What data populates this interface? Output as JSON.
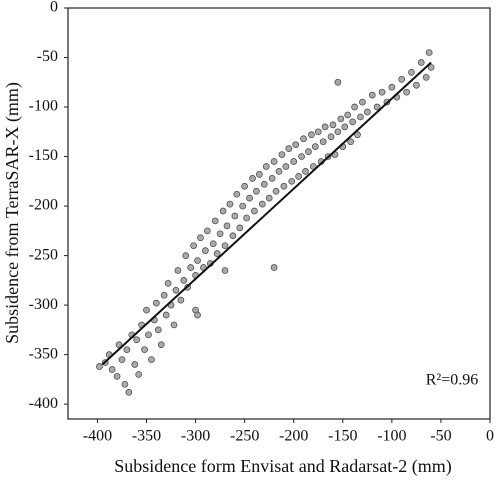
{
  "chart_data": {
    "type": "scatter",
    "x_label": "Subsidence form Envisat and Radarsat-2 (mm)",
    "y_label": "Subsidence from TerraSAR-X (mm)",
    "annotation": "R²=0.96",
    "color": "#a9a9a9",
    "xlim": [
      -430,
      0
    ],
    "ylim": [
      -415,
      0
    ],
    "xticks": [
      -400,
      -350,
      -300,
      -250,
      -200,
      -150,
      -100,
      -50,
      0
    ],
    "yticks": [
      0,
      -50,
      -100,
      -150,
      -200,
      -250,
      -300,
      -350,
      -400
    ],
    "x": [
      -398,
      -392,
      -388,
      -385,
      -380,
      -378,
      -375,
      -372,
      -370,
      -368,
      -365,
      -362,
      -360,
      -358,
      -355,
      -352,
      -350,
      -348,
      -345,
      -342,
      -340,
      -338,
      -335,
      -332,
      -330,
      -328,
      -325,
      -322,
      -320,
      -318,
      -315,
      -312,
      -310,
      -308,
      -305,
      -302,
      -300,
      -298,
      -295,
      -292,
      -290,
      -288,
      -285,
      -282,
      -280,
      -278,
      -275,
      -272,
      -270,
      -268,
      -265,
      -262,
      -260,
      -258,
      -255,
      -252,
      -250,
      -248,
      -245,
      -242,
      -240,
      -238,
      -235,
      -232,
      -230,
      -228,
      -225,
      -222,
      -220,
      -218,
      -215,
      -212,
      -210,
      -208,
      -205,
      -202,
      -200,
      -198,
      -195,
      -192,
      -190,
      -188,
      -185,
      -182,
      -180,
      -178,
      -175,
      -172,
      -170,
      -168,
      -165,
      -162,
      -160,
      -158,
      -155,
      -152,
      -150,
      -148,
      -145,
      -142,
      -140,
      -138,
      -135,
      -132,
      -130,
      -125,
      -120,
      -115,
      -110,
      -105,
      -100,
      -95,
      -90,
      -85,
      -80,
      -75,
      -70,
      -65,
      -62,
      -60,
      -300,
      -298,
      -270,
      -155,
      -220
    ],
    "y": [
      -362,
      -358,
      -350,
      -365,
      -372,
      -340,
      -355,
      -380,
      -345,
      -388,
      -330,
      -360,
      -335,
      -370,
      -320,
      -345,
      -305,
      -330,
      -355,
      -315,
      -298,
      -325,
      -340,
      -290,
      -310,
      -278,
      -300,
      -320,
      -285,
      -265,
      -295,
      -275,
      -250,
      -282,
      -262,
      -240,
      -270,
      -255,
      -232,
      -262,
      -245,
      -225,
      -258,
      -238,
      -215,
      -248,
      -228,
      -205,
      -240,
      -220,
      -198,
      -230,
      -210,
      -188,
      -222,
      -200,
      -180,
      -212,
      -192,
      -172,
      -205,
      -185,
      -168,
      -198,
      -178,
      -160,
      -192,
      -172,
      -155,
      -185,
      -165,
      -148,
      -180,
      -160,
      -142,
      -175,
      -155,
      -138,
      -170,
      -150,
      -132,
      -165,
      -145,
      -128,
      -160,
      -140,
      -125,
      -155,
      -135,
      -120,
      -150,
      -130,
      -118,
      -148,
      -125,
      -112,
      -140,
      -120,
      -108,
      -135,
      -115,
      -100,
      -128,
      -110,
      -95,
      -105,
      -88,
      -100,
      -85,
      -95,
      -80,
      -90,
      -72,
      -85,
      -65,
      -78,
      -55,
      -70,
      -45,
      -60,
      -305,
      -310,
      -265,
      -75,
      -262
    ],
    "trend_line": {
      "x": [
        -395,
        -60
      ],
      "y": [
        -360,
        -55
      ]
    }
  }
}
